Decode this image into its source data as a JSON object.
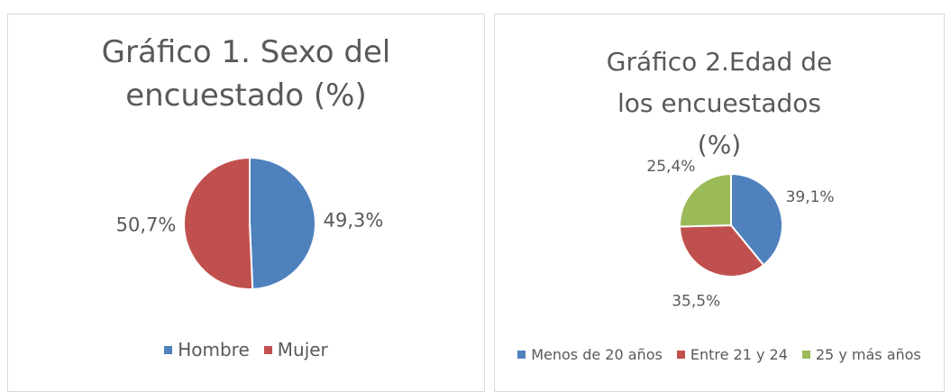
{
  "chart_data": [
    {
      "type": "pie",
      "title": "Gráfico 1. Sexo del encuestado (%)",
      "categories": [
        "Hombre",
        "Mujer"
      ],
      "values": [
        49.3,
        50.7
      ],
      "value_labels": [
        "49,3%",
        "50,7%"
      ],
      "colors": [
        "#4f81bd",
        "#c0504d"
      ],
      "legend": "bottom"
    },
    {
      "type": "pie",
      "title": "Gráfico 2.Edad de los encuestados (%)",
      "categories": [
        "Menos de 20 años",
        "Entre 21 y 24",
        "25 y más años"
      ],
      "values": [
        39.1,
        35.5,
        25.4
      ],
      "value_labels": [
        "39,1%",
        "35,5%",
        "25,4%"
      ],
      "colors": [
        "#4f81bd",
        "#c0504d",
        "#9bbb59"
      ],
      "legend": "bottom"
    }
  ]
}
